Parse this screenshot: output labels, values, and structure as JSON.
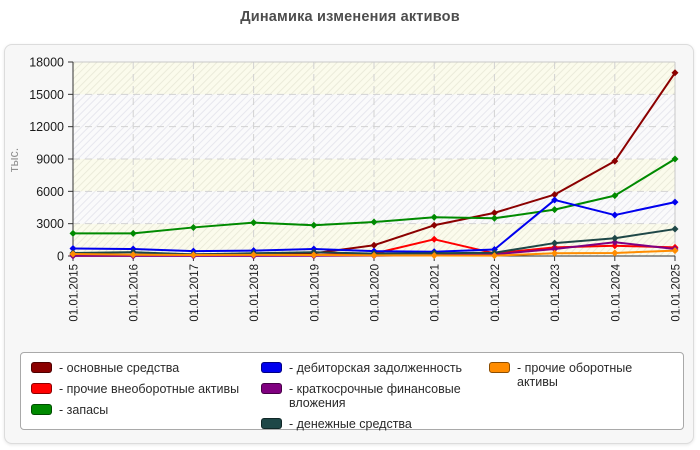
{
  "title": "Динамика изменения активов",
  "y_axis_unit_label": "тыс.",
  "legend": {
    "label_prefix": "- ",
    "columns": [
      [
        0,
        1,
        2
      ],
      [
        3,
        4,
        5
      ],
      [
        6
      ]
    ]
  },
  "chart_data": {
    "type": "line",
    "x": [
      "01.01.2015",
      "01.01.2016",
      "01.01.2017",
      "01.01.2018",
      "01.01.2019",
      "01.01.2020",
      "01.01.2021",
      "01.01.2022",
      "01.01.2023",
      "01.01.2024",
      "01.01.2025"
    ],
    "ylim": [
      0,
      18000
    ],
    "yticks": [
      0,
      3000,
      6000,
      9000,
      12000,
      15000,
      18000
    ],
    "grid": "dashed",
    "legend_position": "bottom",
    "marker": "diamond",
    "band_colors": {
      "cream": "#fbfbec",
      "white": "#fafafb"
    },
    "band_hatch_colors": {
      "cream": "#ebebda",
      "white": "#e7e7ee"
    },
    "band_order_bottom_to_top": [
      "cream",
      "white",
      "cream",
      "white",
      "white",
      "cream"
    ],
    "axis_colors": {
      "dark": "#333333",
      "light": "#c8c8c8",
      "grid": "#d2d2d2",
      "text": "#1a1a1a",
      "unit": "#8f8f8f"
    },
    "series": [
      {
        "name": "основные средства",
        "color": "#8b0000",
        "values": [
          100,
          120,
          150,
          200,
          250,
          1000,
          2850,
          4000,
          5700,
          8800,
          17000
        ]
      },
      {
        "name": "прочие внеоборотные активы",
        "color": "#ff0000",
        "values": [
          30,
          40,
          50,
          60,
          90,
          220,
          1550,
          250,
          800,
          950,
          800
        ]
      },
      {
        "name": "запасы",
        "color": "#008a00",
        "values": [
          2100,
          2100,
          2650,
          3100,
          2850,
          3150,
          3600,
          3500,
          4300,
          5600,
          9000
        ]
      },
      {
        "name": "дебиторская задолженность",
        "color": "#0000ee",
        "values": [
          700,
          650,
          450,
          500,
          650,
          450,
          400,
          600,
          5200,
          3800,
          5000
        ]
      },
      {
        "name": "краткосрочные финансовые вложения",
        "color": "#800080",
        "values": [
          10,
          10,
          10,
          10,
          20,
          30,
          80,
          150,
          650,
          1280,
          650
        ]
      },
      {
        "name": "денежные средства",
        "color": "#1e4747",
        "values": [
          280,
          350,
          150,
          250,
          350,
          225,
          250,
          300,
          1200,
          1650,
          2500
        ]
      },
      {
        "name": "прочие оборотные активы",
        "color": "#ff8c00",
        "values": [
          180,
          120,
          90,
          100,
          90,
          60,
          50,
          30,
          250,
          280,
          500
        ]
      }
    ]
  }
}
